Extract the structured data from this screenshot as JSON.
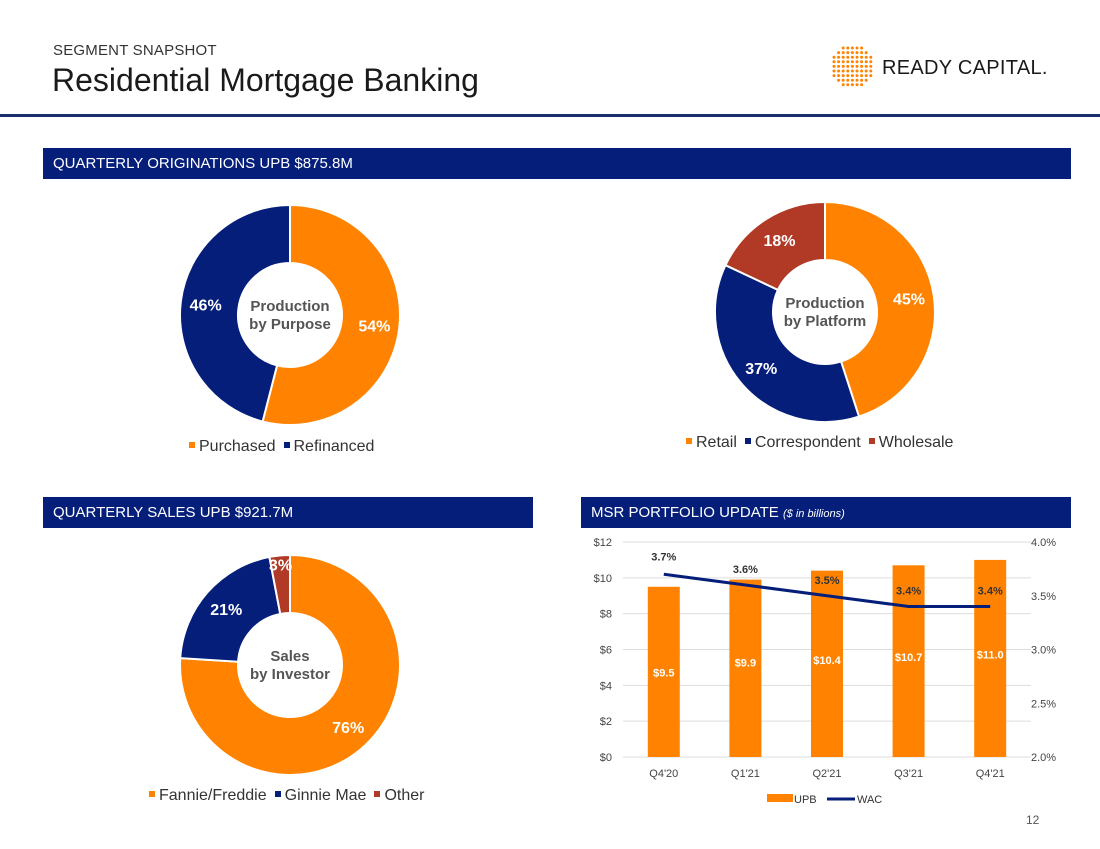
{
  "header": {
    "kicker": "SEGMENT SNAPSHOT",
    "title": "Residential Mortgage Banking",
    "logo_text": "READY CAPITAL."
  },
  "sections": {
    "originations": "QUARTERLY ORIGINATIONS UPB $875.8M",
    "sales": "QUARTERLY SALES UPB $921.7M",
    "msr": "MSR PORTFOLIO UPDATE",
    "msr_note": "($ in billions)"
  },
  "colors": {
    "orange": "#FF8300",
    "navy": "#041E7A",
    "red": "#B03A26"
  },
  "page_number": "12",
  "chart_data": [
    {
      "type": "pie",
      "title": "Production by Purpose",
      "center_label": [
        "Production",
        "by Purpose"
      ],
      "slices": [
        {
          "label": "Purchased",
          "value": 54,
          "text": "54%",
          "color": "#FF8300"
        },
        {
          "label": "Refinanced",
          "value": 46,
          "text": "46%",
          "color": "#041E7A"
        }
      ]
    },
    {
      "type": "pie",
      "title": "Production by Platform",
      "center_label": [
        "Production",
        "by Platform"
      ],
      "slices": [
        {
          "label": "Retail",
          "value": 45,
          "text": "45%",
          "color": "#FF8300"
        },
        {
          "label": "Correspondent",
          "value": 37,
          "text": "37%",
          "color": "#041E7A"
        },
        {
          "label": "Wholesale",
          "value": 18,
          "text": "18%",
          "color": "#B03A26"
        }
      ]
    },
    {
      "type": "pie",
      "title": "Sales by Investor",
      "center_label": [
        "Sales",
        "by Investor"
      ],
      "slices": [
        {
          "label": "Fannie/Freddie",
          "value": 76,
          "text": "76%",
          "color": "#FF8300"
        },
        {
          "label": "Ginnie Mae",
          "value": 21,
          "text": "21%",
          "color": "#041E7A"
        },
        {
          "label": "Other",
          "value": 3,
          "text": "3%",
          "color": "#B03A26"
        }
      ]
    },
    {
      "type": "bar",
      "title": "MSR PORTFOLIO UPDATE",
      "categories": [
        "Q4'20",
        "Q1'21",
        "Q2'21",
        "Q3'21",
        "Q4'21"
      ],
      "series": [
        {
          "name": "UPB",
          "type": "bar",
          "values": [
            9.5,
            9.9,
            10.4,
            10.7,
            11.0
          ],
          "labels": [
            "$9.5",
            "$9.9",
            "$10.4",
            "$10.7",
            "$11.0"
          ],
          "color": "#FF8300"
        },
        {
          "name": "WAC",
          "type": "line",
          "axis": "right",
          "values": [
            3.7,
            3.6,
            3.5,
            3.4,
            3.4
          ],
          "labels": [
            "3.7%",
            "3.6%",
            "3.5%",
            "3.4%",
            "3.4%"
          ],
          "color": "#041E7A"
        }
      ],
      "ylim": [
        0,
        12
      ],
      "y_ticks": [
        "$0",
        "$2",
        "$4",
        "$6",
        "$8",
        "$10",
        "$12"
      ],
      "y2lim": [
        2.0,
        4.0
      ],
      "y2_ticks": [
        "2.0%",
        "2.5%",
        "3.0%",
        "3.5%",
        "4.0%"
      ],
      "grid": true,
      "legend": "bottom"
    }
  ]
}
